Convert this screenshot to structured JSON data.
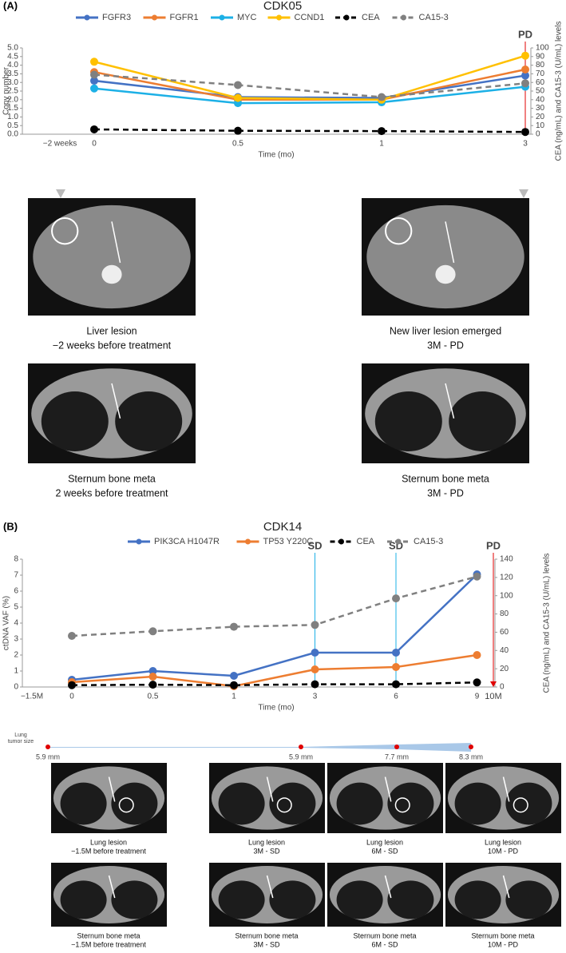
{
  "chart_data": [
    {
      "type": "line",
      "panel": "(A)",
      "title": "CDK05",
      "categories": [
        "0",
        "0.5",
        "1",
        "3"
      ],
      "x_before": "−2 weeks",
      "x_label": "Time (mo)",
      "y_label": "Copy number",
      "y2_label": "CEA (ng/mL) and CA15-3 (U/mL) levels",
      "ylim": [
        0,
        5
      ],
      "yticks": [
        {
          "value": 0,
          "label": "0.0"
        },
        {
          "value": 0.5,
          "label": "0.5"
        },
        {
          "value": 1,
          "label": "1.0"
        },
        {
          "value": 1.5,
          "label": "1.5"
        },
        {
          "value": 2,
          "label": "2.0"
        },
        {
          "value": 2.5,
          "label": "2.5"
        },
        {
          "value": 3,
          "label": "3.0"
        },
        {
          "value": 3.5,
          "label": "3.5"
        },
        {
          "value": 4,
          "label": "4.0"
        },
        {
          "value": 4.5,
          "label": "4.5"
        },
        {
          "value": 5,
          "label": "5.0"
        }
      ],
      "y2lim": [
        0,
        100
      ],
      "y2ticks": [
        0,
        10,
        20,
        30,
        40,
        50,
        60,
        70,
        80,
        90,
        100
      ],
      "series": [
        {
          "name": "FGFR3",
          "color": "#4472c4",
          "values": [
            3.1,
            2.15,
            2.1,
            3.4
          ]
        },
        {
          "name": "FGFR1",
          "color": "#ed7d31",
          "values": [
            3.6,
            2.0,
            2.0,
            3.75
          ]
        },
        {
          "name": "MYC",
          "color": "#1cb0e6",
          "values": [
            2.65,
            1.8,
            1.85,
            2.75
          ]
        },
        {
          "name": "CCND1",
          "color": "#ffc000",
          "values": [
            4.2,
            2.1,
            2.0,
            4.55
          ]
        },
        {
          "name": "CEA",
          "color": "#000000",
          "dashed": true,
          "axis": "y2",
          "values": [
            5.6,
            4,
            3.6,
            2.6
          ]
        },
        {
          "name": "CA15-3",
          "color": "#808080",
          "dashed": true,
          "axis": "y2",
          "values": [
            69,
            57,
            43,
            59
          ]
        }
      ],
      "annotations": [
        {
          "text": "PD",
          "at": "3",
          "color": "#e00000"
        }
      ]
    },
    {
      "type": "line",
      "panel": "(B)",
      "title": "CDK14",
      "categories": [
        "0",
        "0.5",
        "1",
        "3",
        "6",
        "9"
      ],
      "x_before": "−1.5M",
      "x_after": "10M",
      "x_label": "Time (mo)",
      "y_label": "ctDNA VAF (%)",
      "y2_label": "CEA (ng/mL) and CA15-3 (U/mL) levels",
      "ylim": [
        0,
        8
      ],
      "yticks": [
        0,
        1,
        2,
        3,
        4,
        5,
        6,
        7,
        8
      ],
      "y2lim": [
        0,
        140
      ],
      "y2ticks": [
        0,
        20,
        40,
        60,
        80,
        100,
        120,
        140
      ],
      "series": [
        {
          "name": "PIK3CA H1047R",
          "color": "#4472c4",
          "values": [
            0.45,
            1.0,
            0.7,
            2.15,
            2.15,
            7.05
          ]
        },
        {
          "name": "TP53 Y220C",
          "color": "#ed7d31",
          "values": [
            0.3,
            0.65,
            0.05,
            1.1,
            1.25,
            2.0
          ]
        },
        {
          "name": "CEA",
          "color": "#000000",
          "dashed": true,
          "axis": "y2",
          "values": [
            2,
            2.5,
            2,
            3,
            3,
            5
          ]
        },
        {
          "name": "CA15-3",
          "color": "#808080",
          "dashed": true,
          "axis": "y2",
          "values": [
            56,
            61,
            66,
            68,
            97,
            121
          ]
        }
      ],
      "annotations": [
        {
          "text": "SD",
          "at": "3",
          "color": "#1cb0e6"
        },
        {
          "text": "SD",
          "at": "6",
          "color": "#1cb0e6"
        },
        {
          "text": "PD",
          "at": "10M",
          "color": "#e00000"
        }
      ]
    }
  ],
  "panel_a_images": [
    [
      "Liver lesion",
      "−2 weeks before treatment"
    ],
    [
      "New liver lesion emerged",
      "3M - PD"
    ],
    [
      "Sternum bone meta",
      "2 weeks before treatment"
    ],
    [
      "Sternum bone meta",
      "3M - PD"
    ]
  ],
  "lung_tumor_size": {
    "label": [
      "Lung",
      "tumor size"
    ],
    "values": [
      "5.9 mm",
      "5.9 mm",
      "7.7 mm",
      "8.3 mm"
    ]
  },
  "panel_b_images": [
    [
      "Lung lesion",
      "−1.5M before treatment"
    ],
    [
      "Lung lesion",
      "3M - SD"
    ],
    [
      "Lung lesion",
      "6M - SD"
    ],
    [
      "Lung lesion",
      "10M - PD"
    ],
    [
      "Sternum bone meta",
      "−1.5M before treatment"
    ],
    [
      "Sternum bone meta",
      "3M - SD"
    ],
    [
      "Sternum bone meta",
      "6M - SD"
    ],
    [
      "Sternum bone meta",
      "10M - PD"
    ]
  ]
}
